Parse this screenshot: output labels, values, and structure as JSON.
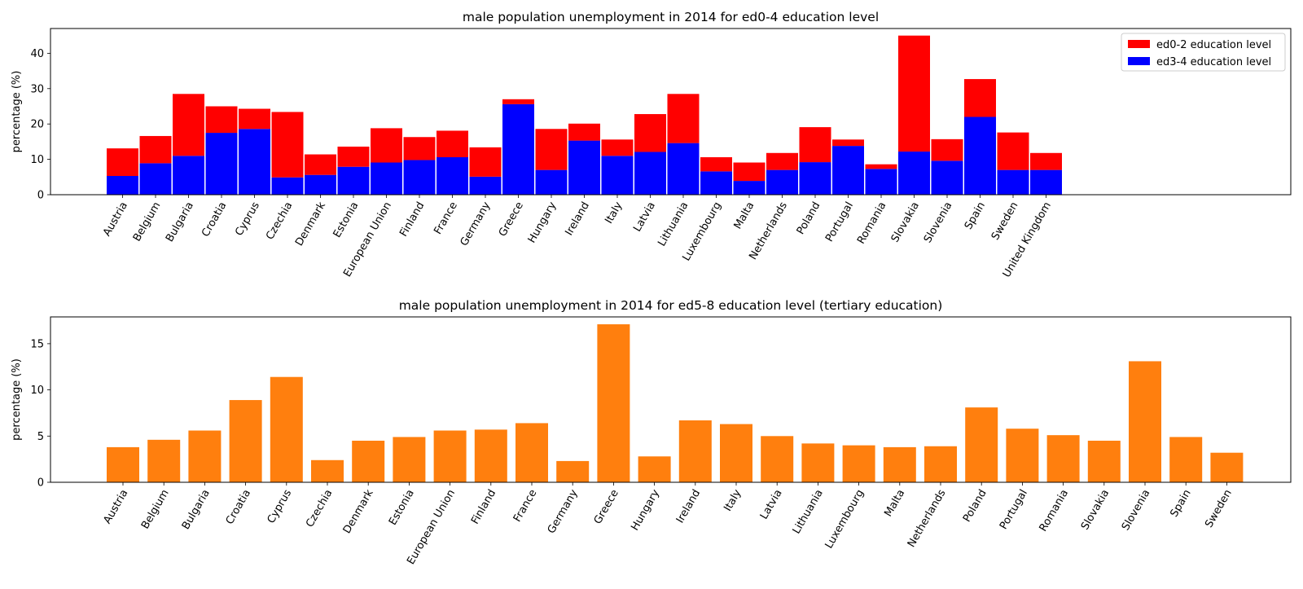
{
  "chart_data": [
    {
      "type": "bar",
      "stacked": true,
      "title": "male population unemployment in 2014 for ed0-4 education level",
      "ylabel": "percentage (%)",
      "xlabel": "",
      "ylim": [
        0,
        47
      ],
      "yticks": [
        0,
        10,
        20,
        30,
        40
      ],
      "grid": false,
      "legend_position": "top-right",
      "categories": [
        "Austria",
        "Belgium",
        "Bulgaria",
        "Croatia",
        "Cyprus",
        "Czechia",
        "Denmark",
        "Estonia",
        "European Union",
        "Finland",
        "France",
        "Germany",
        "Greece",
        "Hungary",
        "Ireland",
        "Italy",
        "Latvia",
        "Lithuania",
        "Luxembourg",
        "Malta",
        "Netherlands",
        "Poland",
        "Portugal",
        "Romania",
        "Slovakia",
        "Slovenia",
        "Spain",
        "Sweden",
        "United Kingdom"
      ],
      "series": [
        {
          "name": "ed3-4 education level",
          "color": "#0000ff",
          "values": [
            5.3,
            8.9,
            11.0,
            17.5,
            18.6,
            4.9,
            5.6,
            7.9,
            9.1,
            9.8,
            10.6,
            5.1,
            25.6,
            7.0,
            15.3,
            11.0,
            12.1,
            14.6,
            6.6,
            3.9,
            7.0,
            9.2,
            13.8,
            7.3,
            12.2,
            9.6,
            22.0,
            7.0,
            7.0
          ]
        },
        {
          "name": "ed0-2 education level",
          "color": "#ff0000",
          "values": [
            7.8,
            7.7,
            17.5,
            7.5,
            5.7,
            18.5,
            5.8,
            5.7,
            9.7,
            6.5,
            7.5,
            8.3,
            1.4,
            11.6,
            4.8,
            4.6,
            10.7,
            13.9,
            4.0,
            5.2,
            4.8,
            9.9,
            1.8,
            1.3,
            32.8,
            6.1,
            10.7,
            10.6,
            4.8
          ]
        }
      ]
    },
    {
      "type": "bar",
      "title": "male population unemployment in 2014 for ed5-8 education level (tertiary education)",
      "ylabel": "percentage (%)",
      "xlabel": "",
      "ylim": [
        0,
        17.9
      ],
      "yticks": [
        0,
        5,
        10,
        15
      ],
      "grid": false,
      "color": "#ff7f0e",
      "categories": [
        "Austria",
        "Belgium",
        "Bulgaria",
        "Croatia",
        "Cyprus",
        "Czechia",
        "Denmark",
        "Estonia",
        "European Union",
        "Finland",
        "France",
        "Germany",
        "Greece",
        "Hungary",
        "Ireland",
        "Italy",
        "Latvia",
        "Lithuania",
        "Luxembourg",
        "Malta",
        "Netherlands",
        "Poland",
        "Portugal",
        "Romania",
        "Slovakia",
        "Slovenia",
        "Spain",
        "Sweden"
      ],
      "values": [
        3.8,
        4.6,
        5.6,
        8.9,
        11.4,
        2.4,
        4.5,
        4.9,
        5.6,
        5.7,
        6.4,
        2.3,
        17.1,
        2.8,
        6.7,
        6.3,
        5.0,
        4.2,
        4.0,
        3.8,
        3.9,
        8.1,
        5.8,
        5.1,
        4.5,
        13.1,
        4.9,
        3.2
      ]
    }
  ]
}
